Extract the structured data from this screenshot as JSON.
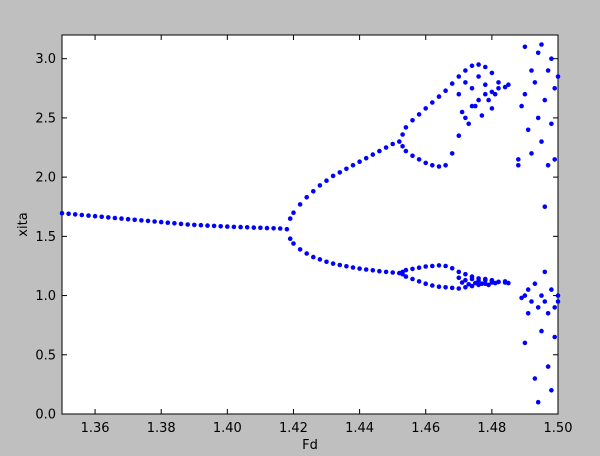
{
  "chart_data": {
    "type": "scatter",
    "title": "",
    "xlabel": "Fd",
    "ylabel": "xita",
    "xlim": [
      1.35,
      1.5
    ],
    "ylim": [
      0.0,
      3.2
    ],
    "xticks": [
      "1.36",
      "1.38",
      "1.40",
      "1.42",
      "1.44",
      "1.46",
      "1.48",
      "1.50"
    ],
    "yticks": [
      "0.0",
      "0.5",
      "1.0",
      "1.5",
      "2.0",
      "2.5",
      "3.0"
    ],
    "grid": false,
    "legend": "none",
    "marker_color": "#0000ff",
    "series": [
      {
        "points": [
          [
            1.35,
            1.695
          ],
          [
            1.352,
            1.69
          ],
          [
            1.354,
            1.685
          ],
          [
            1.356,
            1.68
          ],
          [
            1.358,
            1.675
          ],
          [
            1.36,
            1.67
          ],
          [
            1.362,
            1.665
          ],
          [
            1.364,
            1.66
          ],
          [
            1.366,
            1.655
          ],
          [
            1.368,
            1.65
          ],
          [
            1.37,
            1.645
          ],
          [
            1.372,
            1.64
          ],
          [
            1.374,
            1.635
          ],
          [
            1.376,
            1.63
          ],
          [
            1.378,
            1.625
          ],
          [
            1.38,
            1.62
          ],
          [
            1.382,
            1.615
          ],
          [
            1.384,
            1.61
          ],
          [
            1.386,
            1.605
          ],
          [
            1.388,
            1.6
          ],
          [
            1.39,
            1.597
          ],
          [
            1.392,
            1.594
          ],
          [
            1.394,
            1.591
          ],
          [
            1.396,
            1.588
          ],
          [
            1.398,
            1.585
          ],
          [
            1.4,
            1.582
          ],
          [
            1.402,
            1.58
          ],
          [
            1.404,
            1.578
          ],
          [
            1.406,
            1.576
          ],
          [
            1.408,
            1.574
          ],
          [
            1.41,
            1.572
          ],
          [
            1.412,
            1.57
          ],
          [
            1.414,
            1.568
          ],
          [
            1.416,
            1.566
          ],
          [
            1.418,
            1.56
          ],
          [
            1.419,
            1.65
          ],
          [
            1.42,
            1.7
          ],
          [
            1.422,
            1.77
          ],
          [
            1.424,
            1.83
          ],
          [
            1.426,
            1.88
          ],
          [
            1.428,
            1.93
          ],
          [
            1.43,
            1.97
          ],
          [
            1.432,
            2.01
          ],
          [
            1.434,
            2.04
          ],
          [
            1.436,
            2.07
          ],
          [
            1.438,
            2.1
          ],
          [
            1.44,
            2.13
          ],
          [
            1.442,
            2.16
          ],
          [
            1.444,
            2.19
          ],
          [
            1.446,
            2.22
          ],
          [
            1.448,
            2.25
          ],
          [
            1.45,
            2.28
          ],
          [
            1.452,
            2.3
          ],
          [
            1.419,
            1.48
          ],
          [
            1.42,
            1.44
          ],
          [
            1.422,
            1.39
          ],
          [
            1.424,
            1.355
          ],
          [
            1.426,
            1.325
          ],
          [
            1.428,
            1.305
          ],
          [
            1.43,
            1.285
          ],
          [
            1.432,
            1.27
          ],
          [
            1.434,
            1.258
          ],
          [
            1.436,
            1.247
          ],
          [
            1.438,
            1.237
          ],
          [
            1.44,
            1.228
          ],
          [
            1.442,
            1.22
          ],
          [
            1.444,
            1.213
          ],
          [
            1.446,
            1.206
          ],
          [
            1.448,
            1.2
          ],
          [
            1.45,
            1.195
          ],
          [
            1.452,
            1.19
          ],
          [
            1.453,
            2.36
          ],
          [
            1.454,
            2.42
          ],
          [
            1.456,
            2.48
          ],
          [
            1.458,
            2.53
          ],
          [
            1.46,
            2.58
          ],
          [
            1.462,
            2.63
          ],
          [
            1.464,
            2.68
          ],
          [
            1.466,
            2.73
          ],
          [
            1.468,
            2.79
          ],
          [
            1.47,
            2.85
          ],
          [
            1.472,
            2.9
          ],
          [
            1.474,
            2.94
          ],
          [
            1.476,
            2.95
          ],
          [
            1.478,
            2.93
          ],
          [
            1.48,
            2.88
          ],
          [
            1.482,
            2.8
          ],
          [
            1.453,
            2.26
          ],
          [
            1.454,
            2.22
          ],
          [
            1.456,
            2.18
          ],
          [
            1.458,
            2.15
          ],
          [
            1.46,
            2.12
          ],
          [
            1.462,
            2.1
          ],
          [
            1.464,
            2.09
          ],
          [
            1.466,
            2.1
          ],
          [
            1.468,
            2.2
          ],
          [
            1.47,
            2.35
          ],
          [
            1.472,
            2.5
          ],
          [
            1.474,
            2.6
          ],
          [
            1.476,
            2.65
          ],
          [
            1.478,
            2.7
          ],
          [
            1.48,
            2.72
          ],
          [
            1.482,
            2.75
          ],
          [
            1.484,
            2.76
          ],
          [
            1.485,
            2.78
          ],
          [
            1.47,
            2.7
          ],
          [
            1.471,
            2.55
          ],
          [
            1.472,
            2.8
          ],
          [
            1.473,
            2.45
          ],
          [
            1.474,
            2.75
          ],
          [
            1.475,
            2.6
          ],
          [
            1.476,
            2.85
          ],
          [
            1.477,
            2.52
          ],
          [
            1.478,
            2.78
          ],
          [
            1.479,
            2.65
          ],
          [
            1.48,
            2.58
          ],
          [
            1.481,
            2.7
          ],
          [
            1.453,
            1.2
          ],
          [
            1.454,
            1.215
          ],
          [
            1.456,
            1.225
          ],
          [
            1.458,
            1.235
          ],
          [
            1.46,
            1.245
          ],
          [
            1.462,
            1.25
          ],
          [
            1.464,
            1.255
          ],
          [
            1.466,
            1.25
          ],
          [
            1.468,
            1.23
          ],
          [
            1.47,
            1.2
          ],
          [
            1.472,
            1.18
          ],
          [
            1.474,
            1.16
          ],
          [
            1.476,
            1.145
          ],
          [
            1.478,
            1.13
          ],
          [
            1.48,
            1.12
          ],
          [
            1.482,
            1.115
          ],
          [
            1.484,
            1.11
          ],
          [
            1.485,
            1.105
          ],
          [
            1.453,
            1.18
          ],
          [
            1.454,
            1.16
          ],
          [
            1.456,
            1.14
          ],
          [
            1.458,
            1.12
          ],
          [
            1.46,
            1.1
          ],
          [
            1.462,
            1.085
          ],
          [
            1.464,
            1.075
          ],
          [
            1.466,
            1.07
          ],
          [
            1.468,
            1.065
          ],
          [
            1.47,
            1.06
          ],
          [
            1.472,
            1.07
          ],
          [
            1.474,
            1.08
          ],
          [
            1.476,
            1.09
          ],
          [
            1.478,
            1.1
          ],
          [
            1.48,
            1.11
          ],
          [
            1.482,
            1.115
          ],
          [
            1.484,
            1.12
          ],
          [
            1.47,
            1.15
          ],
          [
            1.471,
            1.11
          ],
          [
            1.472,
            1.13
          ],
          [
            1.473,
            1.095
          ],
          [
            1.474,
            1.14
          ],
          [
            1.475,
            1.105
          ],
          [
            1.476,
            1.125
          ],
          [
            1.477,
            1.1
          ],
          [
            1.478,
            1.14
          ],
          [
            1.479,
            1.09
          ],
          [
            1.48,
            1.13
          ],
          [
            1.481,
            1.105
          ],
          [
            1.488,
            2.15
          ],
          [
            1.488,
            2.1
          ],
          [
            1.489,
            2.6
          ],
          [
            1.489,
            0.98
          ],
          [
            1.49,
            2.7
          ],
          [
            1.49,
            1.0
          ],
          [
            1.49,
            3.1
          ],
          [
            1.49,
            0.6
          ],
          [
            1.491,
            2.4
          ],
          [
            1.491,
            1.05
          ],
          [
            1.491,
            0.85
          ],
          [
            1.492,
            2.9
          ],
          [
            1.492,
            2.2
          ],
          [
            1.492,
            0.95
          ],
          [
            1.493,
            2.8
          ],
          [
            1.493,
            1.1
          ],
          [
            1.493,
            0.3
          ],
          [
            1.494,
            3.05
          ],
          [
            1.494,
            2.5
          ],
          [
            1.494,
            0.9
          ],
          [
            1.494,
            0.1
          ],
          [
            1.495,
            2.3
          ],
          [
            1.495,
            1.0
          ],
          [
            1.495,
            0.7
          ],
          [
            1.495,
            3.12
          ],
          [
            1.496,
            2.65
          ],
          [
            1.496,
            1.2
          ],
          [
            1.496,
            0.95
          ],
          [
            1.496,
            1.75
          ],
          [
            1.497,
            2.9
          ],
          [
            1.497,
            2.1
          ],
          [
            1.497,
            0.85
          ],
          [
            1.497,
            0.4
          ],
          [
            1.498,
            3.0
          ],
          [
            1.498,
            2.45
          ],
          [
            1.498,
            1.05
          ],
          [
            1.498,
            0.2
          ],
          [
            1.499,
            2.75
          ],
          [
            1.499,
            2.15
          ],
          [
            1.499,
            0.9
          ],
          [
            1.499,
            0.65
          ],
          [
            1.5,
            2.85
          ],
          [
            1.5,
            1.0
          ],
          [
            1.5,
            0.95
          ]
        ]
      }
    ]
  }
}
